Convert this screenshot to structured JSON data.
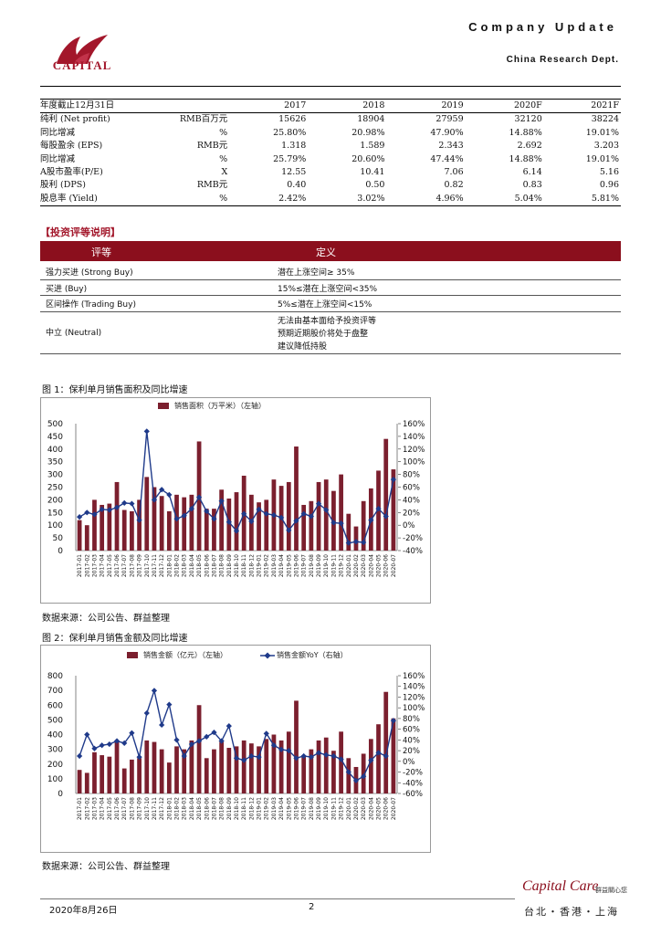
{
  "header": {
    "logo_text": "CAPITAL",
    "title": "Company Update",
    "dept": "China Research Dept."
  },
  "fin_table": {
    "header": [
      "年度截止12月31日",
      "",
      "2017",
      "2018",
      "2019",
      "2020F",
      "2021F"
    ],
    "rows": [
      [
        "纯利 (Net profit)",
        "RMB百万元",
        "15626",
        "18904",
        "27959",
        "32120",
        "38224"
      ],
      [
        "同比增减",
        "%",
        "25.80%",
        "20.98%",
        "47.90%",
        "14.88%",
        "19.01%"
      ],
      [
        "每股盈余 (EPS)",
        "RMB元",
        "1.318",
        "1.589",
        "2.343",
        "2.692",
        "3.203"
      ],
      [
        "同比增减",
        "%",
        "25.79%",
        "20.60%",
        "47.44%",
        "14.88%",
        "19.01%"
      ],
      [
        "A股市盈率(P/E)",
        "X",
        "12.55",
        "10.41",
        "7.06",
        "6.14",
        "5.16"
      ],
      [
        "股利 (DPS)",
        "RMB元",
        "0.40",
        "0.50",
        "0.82",
        "0.83",
        "0.96"
      ],
      [
        "股息率 (Yield)",
        "%",
        "2.42%",
        "3.02%",
        "4.96%",
        "5.04%",
        "5.81%"
      ]
    ]
  },
  "rating": {
    "heading": "【投资评等说明】",
    "col1": "评等",
    "col2": "定义",
    "rows": [
      {
        "name": "强力买进 (Strong Buy)",
        "lines": [
          "潜在上涨空间≥ 35%"
        ]
      },
      {
        "name": "买进 (Buy)",
        "lines": [
          "15%≤潜在上涨空间<35%"
        ]
      },
      {
        "name": "区间操作 (Trading Buy)",
        "lines": [
          "5%≤潜在上涨空间<15%"
        ]
      },
      {
        "name": "中立 (Neutral)",
        "lines": [
          "无法由基本面给予投资评等",
          "预期近期股价将处于盘整",
          "建议降低持股"
        ]
      }
    ]
  },
  "figures": [
    {
      "title": "图 1：保利单月销售面积及同比增速",
      "source": "数据来源：公司公告、群益整理"
    },
    {
      "title": "图 2：保利单月销售金额及同比增速",
      "source": "数据来源：公司公告、群益整理"
    }
  ],
  "chart_data": [
    {
      "type": "bar",
      "legend": [
        "销售面积（万平米）（左轴）"
      ],
      "left_ylim": [
        0,
        500
      ],
      "left_ticks": [
        0,
        50,
        100,
        150,
        200,
        250,
        300,
        350,
        400,
        450,
        500
      ],
      "right_ylim": [
        -40,
        160
      ],
      "right_ticks": [
        "-40%",
        "-20%",
        "0%",
        "20%",
        "40%",
        "60%",
        "80%",
        "100%",
        "120%",
        "140%",
        "160%"
      ],
      "colors": {
        "bar": "#7b1f2e",
        "line": "#1f3a8a"
      },
      "categories": [
        "2017-01",
        "2017-02",
        "2017-03",
        "2017-04",
        "2017-05",
        "2017-06",
        "2017-07",
        "2017-08",
        "2017-09",
        "2017-10",
        "2017-11",
        "2017-12",
        "2018-01",
        "2018-02",
        "2018-03",
        "2018-04",
        "2018-05",
        "2018-06",
        "2018-07",
        "2018-08",
        "2018-09",
        "2018-10",
        "2018-11",
        "2018-12",
        "2019-01",
        "2019-02",
        "2019-03",
        "2019-04",
        "2019-05",
        "2019-06",
        "2019-07",
        "2019-08",
        "2019-09",
        "2019-10",
        "2019-11",
        "2019-12",
        "2020-01",
        "2020-02",
        "2020-03",
        "2020-04",
        "2020-05",
        "2020-06",
        "2020-07"
      ],
      "series": [
        {
          "axis": "left",
          "kind": "bar",
          "values": [
            120,
            100,
            200,
            180,
            185,
            270,
            160,
            155,
            200,
            290,
            250,
            215,
            155,
            220,
            210,
            220,
            430,
            165,
            165,
            240,
            205,
            230,
            295,
            220,
            190,
            200,
            280,
            255,
            270,
            410,
            180,
            195,
            270,
            280,
            235,
            300,
            145,
            95,
            195,
            245,
            315,
            440,
            320
          ]
        },
        {
          "axis": "right",
          "kind": "line",
          "values": [
            13,
            20,
            17,
            25,
            24,
            28,
            35,
            34,
            8,
            148,
            40,
            56,
            48,
            10,
            15,
            26,
            44,
            22,
            10,
            38,
            5,
            -9,
            18,
            6,
            25,
            18,
            16,
            12,
            -8,
            7,
            18,
            14,
            34,
            24,
            4,
            3,
            -28,
            -26,
            -27,
            8,
            26,
            14,
            72
          ]
        }
      ]
    },
    {
      "type": "bar",
      "legend": [
        "销售金额（亿元）（左轴）",
        "销售金额YoY（右轴）"
      ],
      "left_ylim": [
        0,
        800
      ],
      "left_ticks": [
        0,
        100,
        200,
        300,
        400,
        500,
        600,
        700,
        800
      ],
      "right_ylim": [
        -60,
        160
      ],
      "right_ticks": [
        "-60%",
        "-40%",
        "-20%",
        "0%",
        "20%",
        "40%",
        "60%",
        "80%",
        "100%",
        "120%",
        "140%",
        "160%"
      ],
      "colors": {
        "bar": "#7b1f2e",
        "line": "#1f3a8a"
      },
      "categories": [
        "2017-01",
        "2017-02",
        "2017-03",
        "2017-04",
        "2017-05",
        "2017-06",
        "2017-07",
        "2017-08",
        "2017-09",
        "2017-10",
        "2017-11",
        "2017-12",
        "2018-01",
        "2018-02",
        "2018-03",
        "2018-04",
        "2018-05",
        "2018-06",
        "2018-07",
        "2018-08",
        "2018-09",
        "2018-10",
        "2018-11",
        "2018-12",
        "2019-01",
        "2019-02",
        "2019-03",
        "2019-04",
        "2019-05",
        "2019-06",
        "2019-07",
        "2019-08",
        "2019-09",
        "2019-10",
        "2019-11",
        "2019-12",
        "2020-01",
        "2020-02",
        "2020-03",
        "2020-04",
        "2020-05",
        "2020-06",
        "2020-07"
      ],
      "series": [
        {
          "axis": "left",
          "kind": "bar",
          "values": [
            160,
            140,
            280,
            260,
            250,
            360,
            170,
            230,
            240,
            360,
            350,
            300,
            210,
            320,
            300,
            360,
            600,
            240,
            300,
            350,
            310,
            320,
            360,
            340,
            320,
            370,
            400,
            360,
            420,
            630,
            260,
            300,
            360,
            380,
            290,
            420,
            240,
            180,
            270,
            370,
            470,
            690,
            510
          ]
        },
        {
          "axis": "right",
          "kind": "line",
          "values": [
            10,
            50,
            24,
            30,
            32,
            38,
            34,
            53,
            8,
            90,
            132,
            68,
            106,
            40,
            10,
            32,
            38,
            46,
            54,
            38,
            66,
            6,
            2,
            10,
            8,
            52,
            30,
            22,
            20,
            6,
            10,
            8,
            16,
            12,
            10,
            4,
            -20,
            -36,
            -28,
            2,
            16,
            10,
            76
          ]
        }
      ]
    }
  ],
  "footer": {
    "date": "2020年8月26日",
    "page": "2",
    "brand": "Capital Care",
    "brand_sub": "群益關心您",
    "cities": "台北・香港・上海"
  }
}
